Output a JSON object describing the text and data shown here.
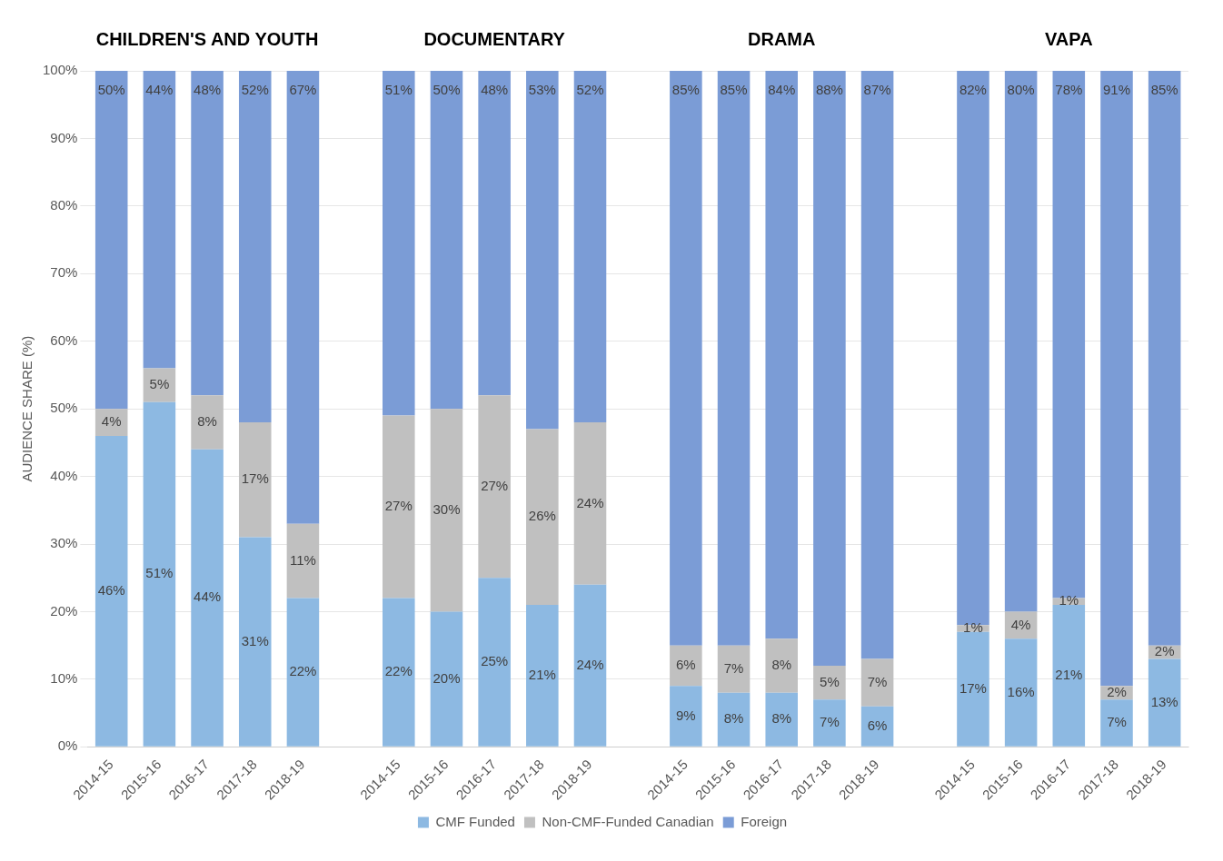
{
  "chart_data": {
    "type": "bar",
    "stacked": true,
    "ylabel": "AUDIENCE SHARE (%)",
    "annotations": [
      "CHILDREN'S AND YOUTH",
      "DOCUMENTARY",
      "DRAMA",
      "VAPA"
    ],
    "categories": [
      "2014-15",
      "2015-16",
      "2016-17",
      "2017-18",
      "2018-19",
      null,
      "2014-15",
      "2015-16",
      "2016-17",
      "2017-18",
      "2018-19",
      null,
      "2014-15",
      "2015-16",
      "2016-17",
      "2017-18",
      "2018-19",
      null,
      "2014-15",
      "2015-16",
      "2016-17",
      "2017-18",
      "2018-19"
    ],
    "series": [
      {
        "name": "CMF Funded",
        "color": "#8db9e2",
        "values": [
          46,
          51,
          44,
          31,
          22,
          null,
          22,
          20,
          25,
          21,
          24,
          null,
          9,
          8,
          8,
          7,
          6,
          null,
          17,
          16,
          21,
          7,
          13
        ],
        "value_labels": [
          "46%",
          "51%",
          "44%",
          "31%",
          "22%",
          null,
          "22%",
          "20%",
          "25%",
          "21%",
          "24%",
          null,
          "9%",
          "8%",
          "8%",
          "7%",
          "6%",
          null,
          "17%",
          "16%",
          "21%",
          "7%",
          "13%"
        ]
      },
      {
        "name": "Non-CMF-Funded Canadian",
        "color": "#c0c0c0",
        "values": [
          4,
          5,
          8,
          17,
          11,
          null,
          27,
          30,
          27,
          26,
          24,
          null,
          6,
          7,
          8,
          5,
          7,
          null,
          1,
          4,
          1,
          2,
          2
        ],
        "value_labels": [
          "4%",
          "5%",
          "8%",
          "17%",
          "11%",
          null,
          "27%",
          "30%",
          "27%",
          "26%",
          "24%",
          null,
          "6%",
          "7%",
          "8%",
          "5%",
          "7%",
          null,
          "1%",
          "4%",
          "1%",
          "2%",
          "2%"
        ]
      },
      {
        "name": "Foreign",
        "color": "#7b9cd6",
        "values": [
          50,
          44,
          48,
          52,
          67,
          null,
          51,
          50,
          48,
          53,
          52,
          null,
          85,
          85,
          84,
          88,
          87,
          null,
          82,
          80,
          78,
          91,
          85
        ],
        "value_labels": [
          "50%",
          "44%",
          "48%",
          "52%",
          "67%",
          null,
          "51%",
          "50%",
          "48%",
          "53%",
          "52%",
          null,
          "85%",
          "85%",
          "84%",
          "88%",
          "87%",
          null,
          "82%",
          "80%",
          "78%",
          "91%",
          "85%"
        ]
      }
    ],
    "ylim": [
      0,
      100
    ],
    "yticks": [
      {
        "value": 0,
        "label": "0%"
      },
      {
        "value": 10,
        "label": "10%"
      },
      {
        "value": 20,
        "label": "20%"
      },
      {
        "value": 30,
        "label": "30%"
      },
      {
        "value": 40,
        "label": "40%"
      },
      {
        "value": 50,
        "label": "50%"
      },
      {
        "value": 60,
        "label": "60%"
      },
      {
        "value": 70,
        "label": "70%"
      },
      {
        "value": 80,
        "label": "80%"
      },
      {
        "value": 90,
        "label": "90%"
      },
      {
        "value": 100,
        "label": "100%"
      }
    ],
    "grid": "y",
    "legend": "bottom"
  }
}
